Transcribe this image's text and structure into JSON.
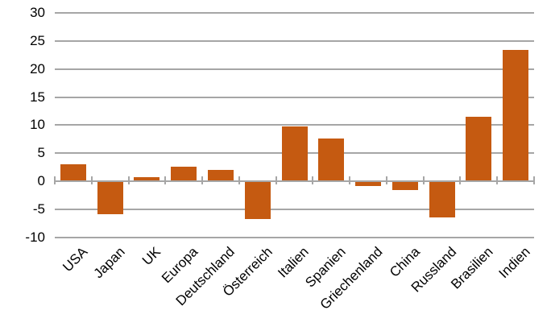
{
  "chart_data": {
    "type": "bar",
    "title": "",
    "xlabel": "",
    "ylabel": "",
    "legend": "none",
    "grid": "horizontal",
    "categories": [
      "USA",
      "Japan",
      "UK",
      "Europa",
      "Deutschland",
      "Österreich",
      "Italien",
      "Spanien",
      "Griechenland",
      "China",
      "Russland",
      "Brasilien",
      "Indien"
    ],
    "values": [
      2.9,
      -5.7,
      0.6,
      2.5,
      1.9,
      -6.6,
      9.6,
      7.4,
      -0.7,
      -1.5,
      -6.3,
      11.3,
      23.2
    ],
    "ylim": [
      -10,
      30
    ],
    "ytick_step": 5,
    "y_ticks": [
      30,
      25,
      20,
      15,
      10,
      5,
      0,
      -5,
      -10
    ],
    "colors": {
      "bar": "#C55A11",
      "gridline": "#A6A6A6",
      "axis": "#A6A6A6",
      "tick": "#A6A6A6",
      "text": "#000000",
      "background": "#FFFFFF"
    }
  }
}
